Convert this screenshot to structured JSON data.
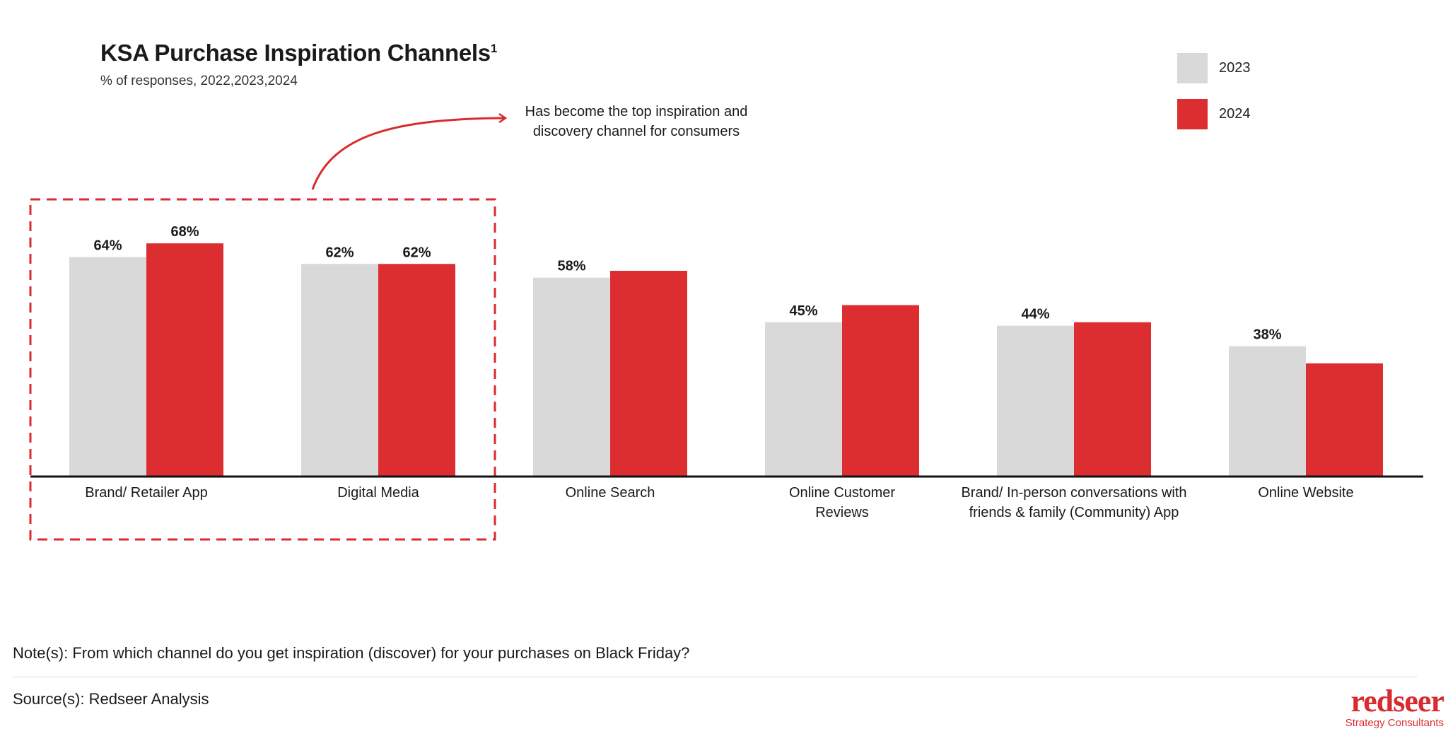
{
  "header": {
    "title": "KSA Purchase Inspiration Channels",
    "title_superscript": "1",
    "subtitle": "% of responses, 2022,2023,2024"
  },
  "annotation": "Has become the top inspiration and discovery channel for consumers",
  "footer": {
    "note": "Note(s): From which channel do you get inspiration (discover) for your purchases on Black Friday?",
    "source": "Source(s): Redseer Analysis"
  },
  "logo": {
    "brand": "redseer",
    "tagline": "Strategy Consultants"
  },
  "colors": {
    "2023": "#d9d9d9",
    "2024": "#dc2e30",
    "accent": "#d92b2f"
  },
  "chart_data": {
    "type": "bar",
    "title": "KSA Purchase Inspiration Channels",
    "categories": [
      [
        "Brand/ Retailer App"
      ],
      [
        "Digital Media"
      ],
      [
        "Online Search"
      ],
      [
        "Online Customer",
        "Reviews"
      ],
      [
        "Brand/ In-person conversations with",
        "friends & family (Community) App"
      ],
      [
        "Online Website"
      ]
    ],
    "series": [
      {
        "name": "2023",
        "values": [
          64,
          62,
          58,
          45,
          44,
          38
        ],
        "labels": [
          "64%",
          "62%",
          "58%",
          "45%",
          "44%",
          "38%"
        ]
      },
      {
        "name": "2024",
        "values": [
          68,
          62,
          60,
          50,
          45,
          33
        ],
        "labels": [
          "68%",
          "62%",
          null,
          null,
          null,
          null
        ]
      }
    ],
    "ylim": [
      0,
      70
    ],
    "grid": false,
    "legend_position": "top-right",
    "highlight": [
      "Brand/ Retailer App",
      "Digital Media"
    ]
  }
}
